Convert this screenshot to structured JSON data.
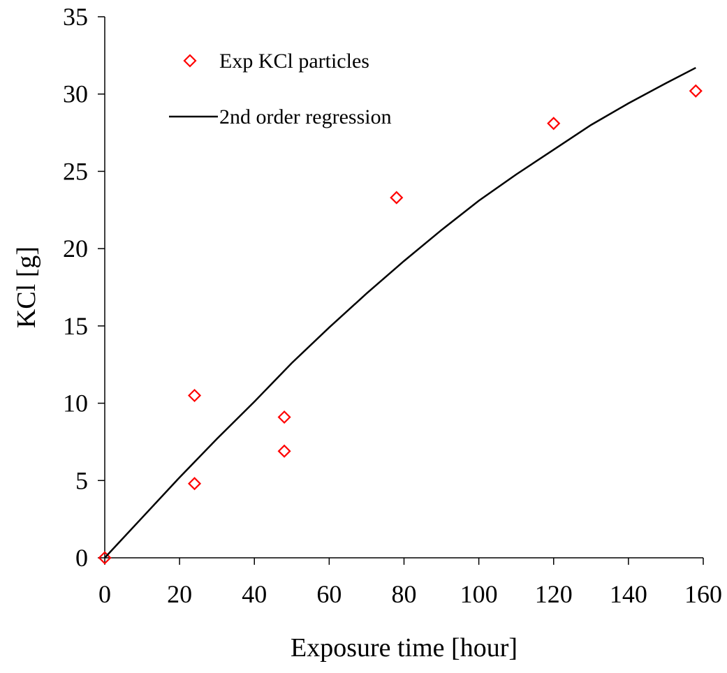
{
  "chart_data": {
    "type": "scatter",
    "xlabel": "Exposure time [hour]",
    "ylabel": "KCl [g]",
    "xlim": [
      0,
      160
    ],
    "ylim": [
      0,
      35
    ],
    "xticks": [
      0,
      20,
      40,
      60,
      80,
      100,
      120,
      140,
      160
    ],
    "yticks": [
      0,
      5,
      10,
      15,
      20,
      25,
      30,
      35
    ],
    "grid": false,
    "legend_position": "top-left",
    "series": [
      {
        "name": "Exp KCl particles",
        "kind": "scatter",
        "marker": "diamond-open",
        "color": "#ff0000",
        "x": [
          0,
          24,
          24,
          48,
          48,
          78,
          120,
          158
        ],
        "y": [
          0,
          10.5,
          4.8,
          9.1,
          6.9,
          23.3,
          28.1,
          30.2
        ]
      },
      {
        "name": "2nd order regression",
        "kind": "line",
        "color": "#000000",
        "x": [
          0,
          10,
          20,
          30,
          40,
          50,
          60,
          70,
          80,
          90,
          100,
          110,
          120,
          130,
          140,
          150,
          158
        ],
        "y": [
          0,
          2.6,
          5.2,
          7.7,
          10.1,
          12.6,
          14.9,
          17.1,
          19.2,
          21.2,
          23.1,
          24.8,
          26.4,
          28.0,
          29.4,
          30.7,
          31.7
        ]
      }
    ]
  }
}
